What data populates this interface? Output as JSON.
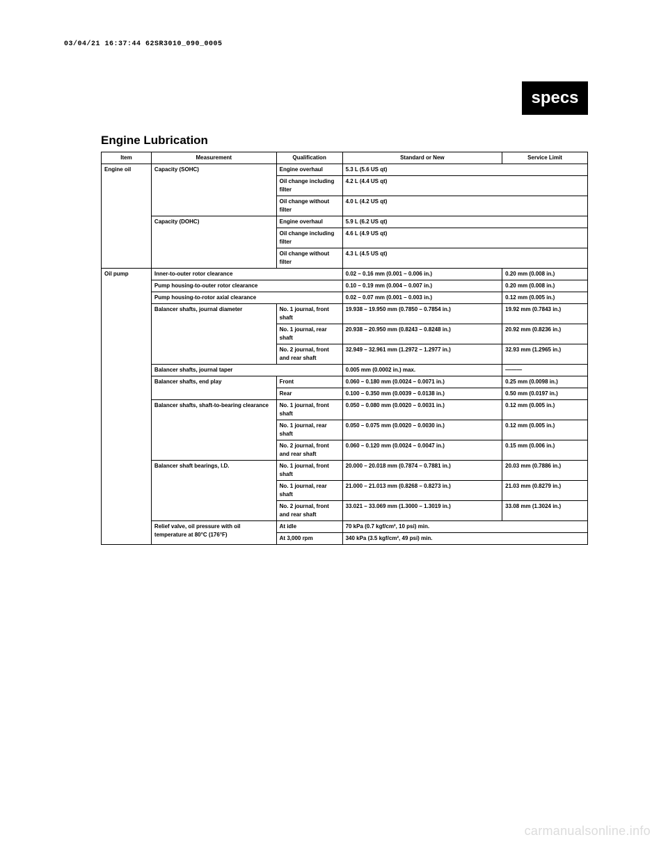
{
  "timestamp": "03/04/21 16:37:44 62SR3010_090_0005",
  "badge": "specs",
  "section_title": "Engine Lubrication",
  "headers": {
    "item": "Item",
    "measurement": "Measurement",
    "qualification": "Qualification",
    "standard": "Standard or New",
    "limit": "Service Limit"
  },
  "engine_oil": {
    "label": "Engine oil",
    "cap_sohc": {
      "label": "Capacity (SOHC)",
      "rows": [
        {
          "qual": "Engine overhaul",
          "std": "5.3 L (5.6 US qt)"
        },
        {
          "qual": "Oil change including filter",
          "std": "4.2 L (4.4 US qt)"
        },
        {
          "qual": "Oil change without filter",
          "std": "4.0 L (4.2 US qt)"
        }
      ]
    },
    "cap_dohc": {
      "label": "Capacity (DOHC)",
      "rows": [
        {
          "qual": "Engine overhaul",
          "std": "5.9 L (6.2 US qt)"
        },
        {
          "qual": "Oil change including filter",
          "std": "4.6 L (4.9 US qt)"
        },
        {
          "qual": "Oil change without filter",
          "std": "4.3 L (4.5 US qt)"
        }
      ]
    }
  },
  "oil_pump": {
    "label": "Oil pump",
    "simple_rows": [
      {
        "meas": "Inner-to-outer rotor clearance",
        "std": "0.02 – 0.16 mm (0.001 – 0.006 in.)",
        "lim": "0.20 mm (0.008 in.)"
      },
      {
        "meas": "Pump housing-to-outer rotor clearance",
        "std": "0.10 – 0.19 mm (0.004 – 0.007 in.)",
        "lim": "0.20 mm (0.008 in.)"
      },
      {
        "meas": "Pump housing-to-rotor axial clearance",
        "std": "0.02 – 0.07 mm (0.001 – 0.003 in.)",
        "lim": "0.12 mm (0.005 in.)"
      }
    ],
    "journal_dia": {
      "label": "Balancer shafts, journal diameter",
      "rows": [
        {
          "qual": "No. 1 journal, front shaft",
          "std": "19.938 – 19.950 mm (0.7850 – 0.7854 in.)",
          "lim": "19.92 mm (0.7843 in.)"
        },
        {
          "qual": "No. 1 journal, rear shaft",
          "std": "20.938 – 20.950 mm (0.8243 – 0.8248 in.)",
          "lim": "20.92 mm (0.8236 in.)"
        },
        {
          "qual": "No. 2 journal, front and rear shaft",
          "std": "32.949 – 32.961 mm (1.2972 – 1.2977 in.)",
          "lim": "32.93 mm (1.2965 in.)"
        }
      ]
    },
    "journal_taper": {
      "label": "Balancer shafts, journal taper",
      "std": "0.005 mm (0.0002 in.) max.",
      "lim": "———"
    },
    "end_play": {
      "label": "Balancer shafts, end play",
      "rows": [
        {
          "qual": "Front",
          "std": "0.060 – 0.180 mm (0.0024 – 0.0071 in.)",
          "lim": "0.25 mm (0.0098 in.)"
        },
        {
          "qual": "Rear",
          "std": "0.100 – 0.350 mm (0.0039 – 0.0138 in.)",
          "lim": "0.50 mm (0.0197 in.)"
        }
      ]
    },
    "oil_clearance": {
      "label": "Balancer shafts, shaft-to-bearing clearance",
      "rows": [
        {
          "qual": "No. 1 journal, front shaft",
          "std": "0.050 – 0.080 mm (0.0020 – 0.0031 in.)",
          "lim": "0.12 mm (0.005 in.)"
        },
        {
          "qual": "No. 1 journal, rear shaft",
          "std": "0.050 – 0.075 mm (0.0020 – 0.0030 in.)",
          "lim": "0.12 mm (0.005 in.)"
        },
        {
          "qual": "No. 2 journal, front and rear shaft",
          "std": "0.060 – 0.120 mm (0.0024 – 0.0047 in.)",
          "lim": "0.15 mm (0.006 in.)"
        }
      ]
    },
    "bearings_id": {
      "label": "Balancer shaft bearings, I.D.",
      "rows": [
        {
          "qual": "No. 1 journal, front shaft",
          "std": "20.000 – 20.018 mm (0.7874 – 0.7881 in.)",
          "lim": "20.03 mm (0.7886 in.)"
        },
        {
          "qual": "No. 1 journal, rear shaft",
          "std": "21.000 – 21.013 mm (0.8268 – 0.8273 in.)",
          "lim": "21.03 mm (0.8279 in.)"
        },
        {
          "qual": "No. 2 journal, front and rear shaft",
          "std": "33.021 – 33.069 mm (1.3000 – 1.3019 in.)",
          "lim": "33.08 mm (1.3024 in.)"
        }
      ]
    },
    "relief_valve": {
      "label": "Relief valve, oil pressure with oil temperature at 80°C (176°F)",
      "rows": [
        {
          "qual": "At idle",
          "std": "70 kPa (0.7 kgf/cm², 10 psi) min."
        },
        {
          "qual": "At 3,000 rpm",
          "std": "340 kPa (3.5 kgf/cm², 49 psi) min."
        }
      ]
    }
  },
  "watermark": "carmanualsonline.info"
}
